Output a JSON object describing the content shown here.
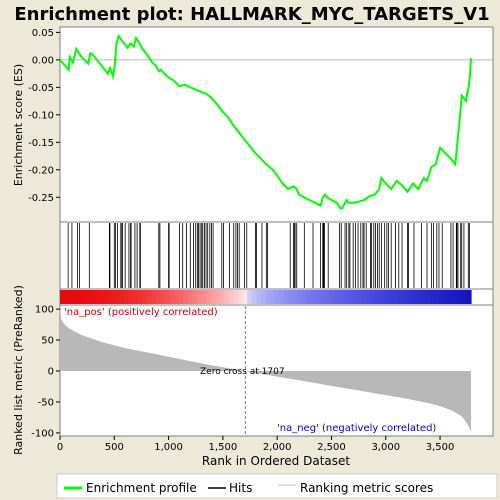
{
  "chart_data": {
    "type": "line",
    "title": "Enrichment plot: HALLMARK_MYC_TARGETS_V1",
    "panels": {
      "enrichment": {
        "ylabel": "Enrichment score (ES)",
        "ylim": [
          -0.295,
          0.058
        ],
        "yticks": [
          0.05,
          0.0,
          -0.05,
          -0.1,
          -0.15,
          -0.2,
          -0.25
        ],
        "ytick_labels": [
          "0.05",
          "0.00",
          "-0.05",
          "-0.10",
          "-0.15",
          "-0.20",
          "-0.25"
        ],
        "series": [
          {
            "x": [
              0,
              80,
              90,
              120,
              150,
              175,
              200,
              260,
              280,
              300,
              440,
              460,
              490,
              505,
              520,
              540,
              560,
              580,
              600,
              620,
              650,
              680,
              700,
              720,
              760,
              800,
              850,
              880,
              910,
              930,
              960,
              1000,
              1050,
              1100,
              1150,
              1200,
              1260,
              1300,
              1350,
              1400,
              1450,
              1500,
              1550,
              1600,
              1700,
              1800,
              1900,
              1960,
              2000,
              2050,
              2100,
              2150,
              2180,
              2200,
              2250,
              2300,
              2350,
              2400,
              2420,
              2440,
              2460,
              2500,
              2550,
              2580,
              2600,
              2620,
              2640,
              2660,
              2700,
              2750,
              2800,
              2850,
              2900,
              2940,
              2960,
              3000,
              3050,
              3100,
              3150,
              3200,
              3250,
              3300,
              3350,
              3380,
              3420,
              3460,
              3500,
              3550,
              3600,
              3640,
              3660,
              3680,
              3700,
              3720,
              3740,
              3750,
              3760,
              3775,
              3785
            ],
            "y": [
              0.0,
              -0.018,
              0.005,
              -0.005,
              0.02,
              0.012,
              0.005,
              -0.007,
              0.012,
              0.01,
              -0.025,
              -0.015,
              -0.03,
              -0.008,
              0.03,
              0.043,
              0.038,
              0.032,
              0.028,
              0.022,
              0.03,
              0.024,
              0.04,
              0.034,
              0.02,
              0.01,
              -0.005,
              -0.01,
              -0.02,
              -0.018,
              -0.025,
              -0.032,
              -0.038,
              -0.048,
              -0.045,
              -0.05,
              -0.055,
              -0.058,
              -0.062,
              -0.07,
              -0.082,
              -0.095,
              -0.105,
              -0.12,
              -0.145,
              -0.17,
              -0.19,
              -0.2,
              -0.21,
              -0.225,
              -0.235,
              -0.23,
              -0.235,
              -0.245,
              -0.25,
              -0.255,
              -0.26,
              -0.265,
              -0.25,
              -0.245,
              -0.25,
              -0.255,
              -0.26,
              -0.27,
              -0.27,
              -0.262,
              -0.255,
              -0.26,
              -0.26,
              -0.258,
              -0.255,
              -0.248,
              -0.245,
              -0.235,
              -0.215,
              -0.225,
              -0.235,
              -0.22,
              -0.228,
              -0.24,
              -0.225,
              -0.235,
              -0.215,
              -0.22,
              -0.195,
              -0.19,
              -0.16,
              -0.17,
              -0.18,
              -0.19,
              -0.15,
              -0.11,
              -0.065,
              -0.07,
              -0.075,
              -0.06,
              -0.055,
              -0.03,
              0.003
            ]
          }
        ]
      },
      "hits": {
        "positions": [
          75,
          110,
          160,
          180,
          270,
          455,
          460,
          500,
          512,
          530,
          560,
          570,
          575,
          600,
          635,
          650,
          655,
          690,
          710,
          735,
          740,
          910,
          920,
          1000,
          1005,
          1100,
          1130,
          1165,
          1200,
          1230,
          1250,
          1265,
          1275,
          1290,
          1305,
          1315,
          1330,
          1345,
          1360,
          1380,
          1395,
          1410,
          1490,
          1505,
          1560,
          1600,
          1620,
          1635,
          1650,
          1700,
          1720,
          1800,
          1810,
          1860,
          1900,
          1910,
          2120,
          2150,
          2160,
          2165,
          2180,
          2250,
          2330,
          2400,
          2420,
          2425,
          2430,
          2435,
          2470,
          2575,
          2590,
          2625,
          2640,
          2660,
          2670,
          2700,
          2720,
          2745,
          2770,
          2790,
          2800,
          2820,
          2860,
          2870,
          2890,
          2905,
          2925,
          2940,
          2960,
          2990,
          3010,
          3025,
          3050,
          3090,
          3120,
          3150,
          3200,
          3210,
          3260,
          3330,
          3380,
          3420,
          3440,
          3470,
          3490,
          3520,
          3600,
          3620,
          3650,
          3655,
          3665,
          3690,
          3700,
          3720,
          3760,
          3770
        ]
      },
      "ranking": {
        "ylabel": "Ranked list metric (PreRanked)",
        "ylim": [
          -105,
          105
        ],
        "yticks": [
          100,
          50,
          0,
          -50,
          -100
        ],
        "ytick_labels": [
          "100",
          "50",
          "0",
          "-50",
          "-100"
        ],
        "profile_x": [
          0,
          10,
          30,
          60,
          100,
          200,
          400,
          600,
          800,
          1000,
          1200,
          1400,
          1600,
          1707,
          1800,
          2000,
          2200,
          2400,
          2600,
          2800,
          3000,
          3200,
          3400,
          3500,
          3600,
          3650,
          3700,
          3730,
          3760,
          3785
        ],
        "profile_y": [
          100,
          85,
          78,
          72,
          67,
          58,
          46,
          37,
          30,
          23,
          16,
          9,
          3,
          0,
          -3,
          -9,
          -15,
          -21,
          -27,
          -33,
          -39,
          -45,
          -52,
          -57,
          -63,
          -68,
          -73,
          -80,
          -88,
          -98
        ],
        "zero_cross_x": 1707,
        "zero_cross_label": "Zero cross at 1707",
        "pos_label": "'na_pos' (positively correlated)",
        "neg_label": "'na_neg' (negatively correlated)"
      }
    },
    "xlabel": "Rank in Ordered Dataset",
    "xlim": [
      0,
      3785
    ],
    "xticks": [
      0,
      500,
      1000,
      1500,
      2000,
      2500,
      3000,
      3500
    ],
    "xtick_labels": [
      "0",
      "500",
      "1,000",
      "1,500",
      "2,000",
      "2,500",
      "3,000",
      "3,500"
    ],
    "legend": {
      "placement": "bottom",
      "entries": [
        {
          "label": "Enrichment profile",
          "color": "#00ff00"
        },
        {
          "label": "Hits",
          "color": "#000000"
        },
        {
          "label": "Ranking metric scores",
          "color": "#c0c0c0"
        }
      ]
    },
    "colors": {
      "profile": "#00ff00",
      "ranking": "#b8b8b8",
      "pos_label": "#cc0000",
      "neg_label": "#0000cc",
      "zero_line": "#808080"
    }
  }
}
